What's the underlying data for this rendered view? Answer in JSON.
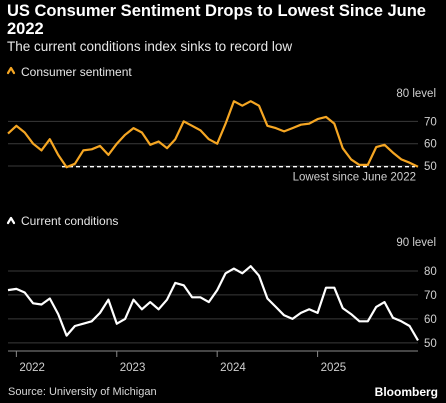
{
  "title": "US Consumer Sentiment Drops to Lowest Since June 2022",
  "subtitle": "The current conditions index sinks to record low",
  "source": "Source: University of Michigan",
  "brand": "Bloomberg",
  "colors": {
    "series1": "#f5a623",
    "series2": "#ffffff",
    "background": "#000000",
    "grid": "#3a3a3a"
  },
  "chart_data": [
    {
      "type": "line",
      "legend": "Consumer sentiment",
      "axis_note": "80 level",
      "y_ticks": [
        50,
        60,
        70
      ],
      "ylim": [
        46,
        80
      ],
      "reference_line": {
        "value": 49.7,
        "label": "Lowest since June 2022"
      },
      "grid": true,
      "legend_position": "top-left",
      "x_start": "2021-12",
      "values": [
        64.5,
        68,
        65,
        60,
        57,
        62,
        55,
        49.5,
        51,
        57,
        57.5,
        59,
        55,
        60,
        64,
        67,
        65,
        59.5,
        61,
        58,
        62,
        70,
        68,
        66,
        62,
        60,
        69,
        79,
        77,
        79,
        77,
        68,
        67,
        65.5,
        67,
        68.5,
        69,
        71,
        72,
        69,
        58,
        53,
        50.5,
        50.5,
        58.5,
        59.5,
        56,
        53,
        51.5,
        49.7
      ]
    },
    {
      "type": "line",
      "legend": "Current conditions",
      "axis_note": "90 level",
      "y_ticks": [
        50,
        60,
        70,
        80
      ],
      "ylim": [
        47,
        90
      ],
      "grid": true,
      "legend_position": "top-left",
      "x_start": "2021-12",
      "x_tick_labels": [
        "2022",
        "2023",
        "2024",
        "2025"
      ],
      "values": [
        72,
        72.5,
        71,
        66.5,
        66,
        68.5,
        62,
        53,
        57,
        58,
        59,
        62.5,
        68,
        58,
        60,
        68,
        64,
        67,
        64,
        68,
        75,
        74,
        69,
        69,
        67,
        72,
        79,
        81,
        79,
        82,
        78,
        68.5,
        65,
        61.5,
        60,
        62.5,
        64,
        62.5,
        73,
        73,
        64.5,
        62,
        59,
        59,
        65,
        67,
        60.5,
        59,
        57,
        51
      ]
    }
  ]
}
